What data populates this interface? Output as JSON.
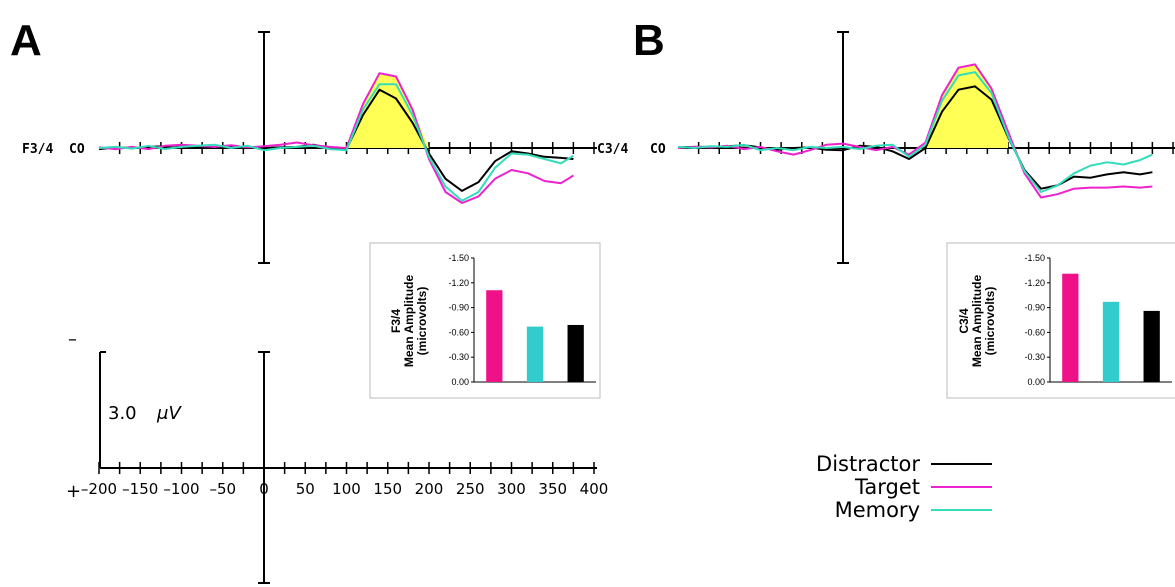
{
  "figure": {
    "panels": [
      {
        "letter": "A",
        "electrode": "F3/4",
        "reference": "CO"
      },
      {
        "letter": "B",
        "electrode": "C3/4",
        "reference": "CO"
      }
    ],
    "scale": {
      "amplitude": "3.0",
      "unit": "μV",
      "neg": "–",
      "pos": "+"
    }
  },
  "colors": {
    "Distractor": "#000000",
    "Target": "#ee22cc",
    "Memory": "#33ddbb",
    "fill": "#ffff55",
    "bar_target": "#ee1188",
    "bar_memory": "#33cccc",
    "bar_distractor": "#000000"
  },
  "chart_data": [
    {
      "type": "line",
      "panel": "A",
      "xlabel": "",
      "ylabel": "",
      "x_ticks": [
        "-200",
        "-150",
        "-100",
        "-50",
        "0",
        "50",
        "100",
        "150",
        "200",
        "250",
        "300",
        "350",
        "400"
      ],
      "x": [
        -200,
        -180,
        -160,
        -140,
        -120,
        -100,
        -80,
        -60,
        -40,
        -20,
        0,
        20,
        40,
        60,
        80,
        100,
        120,
        140,
        160,
        180,
        200,
        220,
        240,
        260,
        280,
        300,
        320,
        340,
        360,
        375
      ],
      "series": [
        {
          "name": "Distractor",
          "values": [
            -0.1,
            0.05,
            0.0,
            0.1,
            0.15,
            0.25,
            0.1,
            0.0,
            0.1,
            0.1,
            0.0,
            0.05,
            0.1,
            0.3,
            0.0,
            -0.1,
            3.0,
            5.3,
            4.5,
            2.3,
            -0.5,
            -2.8,
            -3.9,
            -3.1,
            -1.2,
            -0.3,
            -0.5,
            -0.8,
            -0.9,
            -1.0
          ]
        },
        {
          "name": "Target",
          "values": [
            0.05,
            -0.1,
            0.1,
            -0.1,
            0.2,
            0.3,
            0.2,
            0.1,
            0.25,
            0.05,
            0.15,
            0.3,
            0.5,
            0.25,
            0.1,
            0.0,
            4.0,
            6.8,
            6.5,
            3.5,
            -1.0,
            -4.0,
            -5.0,
            -4.4,
            -2.8,
            -2.0,
            -2.3,
            -3.0,
            -3.2,
            -2.5
          ]
        },
        {
          "name": "Memory",
          "values": [
            0.0,
            0.1,
            -0.05,
            0.2,
            -0.1,
            0.1,
            0.2,
            0.3,
            0.0,
            0.2,
            -0.2,
            0.0,
            0.1,
            0.2,
            -0.1,
            -0.2,
            3.5,
            5.8,
            5.8,
            3.0,
            -0.8,
            -3.5,
            -4.8,
            -4.0,
            -1.8,
            -0.5,
            -0.6,
            -1.0,
            -1.4,
            -0.7
          ]
        }
      ],
      "inset": {
        "type": "bar",
        "title": "F3/4",
        "ylabel": "Mean Amplitude (microvolts)",
        "yticks": [
          "-1.50",
          "-1.20",
          "-0.90",
          "-0.60",
          "-0.30",
          "0.00"
        ],
        "categories": [
          "Target",
          "Memory",
          "Distractor"
        ],
        "values": [
          -1.11,
          -0.67,
          -0.69
        ]
      }
    },
    {
      "type": "line",
      "panel": "B",
      "xlabel": "",
      "ylabel": "",
      "x": [
        -200,
        -180,
        -160,
        -140,
        -120,
        -100,
        -80,
        -60,
        -40,
        -20,
        0,
        20,
        40,
        60,
        80,
        100,
        120,
        140,
        160,
        180,
        200,
        220,
        240,
        260,
        280,
        300,
        320,
        340,
        360,
        375
      ],
      "series": [
        {
          "name": "Distractor",
          "values": [
            0.05,
            0.1,
            0.1,
            0.15,
            0.25,
            0.05,
            -0.15,
            0.0,
            0.05,
            -0.15,
            -0.2,
            0.2,
            0.1,
            -0.3,
            -1.0,
            0.0,
            3.3,
            5.3,
            5.6,
            4.4,
            1.0,
            -2.0,
            -3.7,
            -3.4,
            -2.6,
            -2.7,
            -2.4,
            -2.2,
            -2.4,
            -2.2
          ]
        },
        {
          "name": "Target",
          "values": [
            0.0,
            0.1,
            0.05,
            0.2,
            -0.1,
            0.1,
            -0.3,
            -0.6,
            -0.2,
            0.3,
            0.4,
            0.1,
            -0.2,
            0.1,
            -0.6,
            0.5,
            4.8,
            7.3,
            7.6,
            5.4,
            1.5,
            -2.3,
            -4.5,
            -4.2,
            -3.7,
            -3.6,
            -3.6,
            -3.5,
            -3.6,
            -3.5
          ]
        },
        {
          "name": "Memory",
          "values": [
            0.1,
            0.0,
            0.15,
            0.1,
            0.3,
            -0.2,
            0.0,
            -0.2,
            0.1,
            0.0,
            0.1,
            -0.1,
            0.2,
            0.3,
            -0.8,
            0.3,
            4.3,
            6.6,
            6.9,
            5.0,
            1.1,
            -2.1,
            -4.0,
            -3.4,
            -2.3,
            -1.6,
            -1.3,
            -1.5,
            -1.1,
            -0.6
          ]
        }
      ],
      "inset": {
        "type": "bar",
        "title": "C3/4",
        "ylabel": "Mean Amplitude (microvolts)",
        "yticks": [
          "-1.50",
          "-1.20",
          "-0.90",
          "-0.60",
          "-0.30",
          "0.00"
        ],
        "categories": [
          "Target",
          "Memory",
          "Distractor"
        ],
        "values": [
          -1.31,
          -0.97,
          -0.86
        ]
      }
    }
  ],
  "legend": [
    {
      "label": "Distractor",
      "color": "#000000"
    },
    {
      "label": "Target",
      "color": "#ee22cc"
    },
    {
      "label": "Memory",
      "color": "#33ddbb"
    }
  ]
}
